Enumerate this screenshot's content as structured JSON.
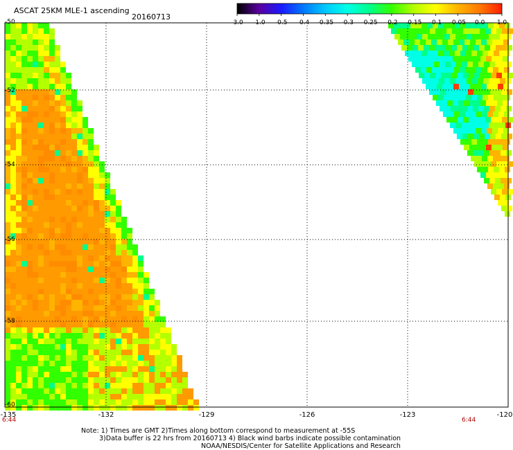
{
  "header": {
    "title": "ASCAT 25KM MLE-1 ascending",
    "date": "20160713"
  },
  "colorbar": {
    "ticks": [
      "-3.0",
      "-1.0",
      "-0.5",
      "-0.4",
      "-0.35",
      "-0.3",
      "-0.25",
      "-0.2",
      "-0.15",
      "-0.1",
      "-0.05",
      "0.0",
      "1.0"
    ],
    "colors": [
      "#000000",
      "#5a00a0",
      "#1a1aff",
      "#0078ff",
      "#00c8ff",
      "#00ffe6",
      "#00ff8c",
      "#32ff00",
      "#b4ff00",
      "#ffff00",
      "#ffb400",
      "#ff7800",
      "#ff1e00"
    ]
  },
  "map": {
    "latitudes": [
      "-50",
      "-52",
      "-54",
      "-56",
      "-58",
      "-60"
    ],
    "longitudes": [
      "-135",
      "-132",
      "-129",
      "-126",
      "-123",
      "-120"
    ],
    "times": [
      "6:44",
      "6:44"
    ],
    "lon_range": [
      -135,
      -120
    ],
    "lat_range": [
      -50,
      -60
    ],
    "swaths": [
      {
        "name": "left-swath",
        "dominant_values": [
          "-0.05",
          "0.0",
          "-0.1",
          "-0.15"
        ]
      },
      {
        "name": "right-swath",
        "dominant_values": [
          "-0.15",
          "-0.25",
          "-0.1"
        ]
      }
    ]
  },
  "notes": {
    "line1": "Note: 1) Times are GMT 2)Times along bottom correspond to measurement at -55S",
    "line2": "3)Data buffer is 22 hrs from 20160713 4) Black wind barbs indicate possible contamination",
    "line3": "NOAA/NESDIS/Center for Satellite Applications and Research"
  }
}
